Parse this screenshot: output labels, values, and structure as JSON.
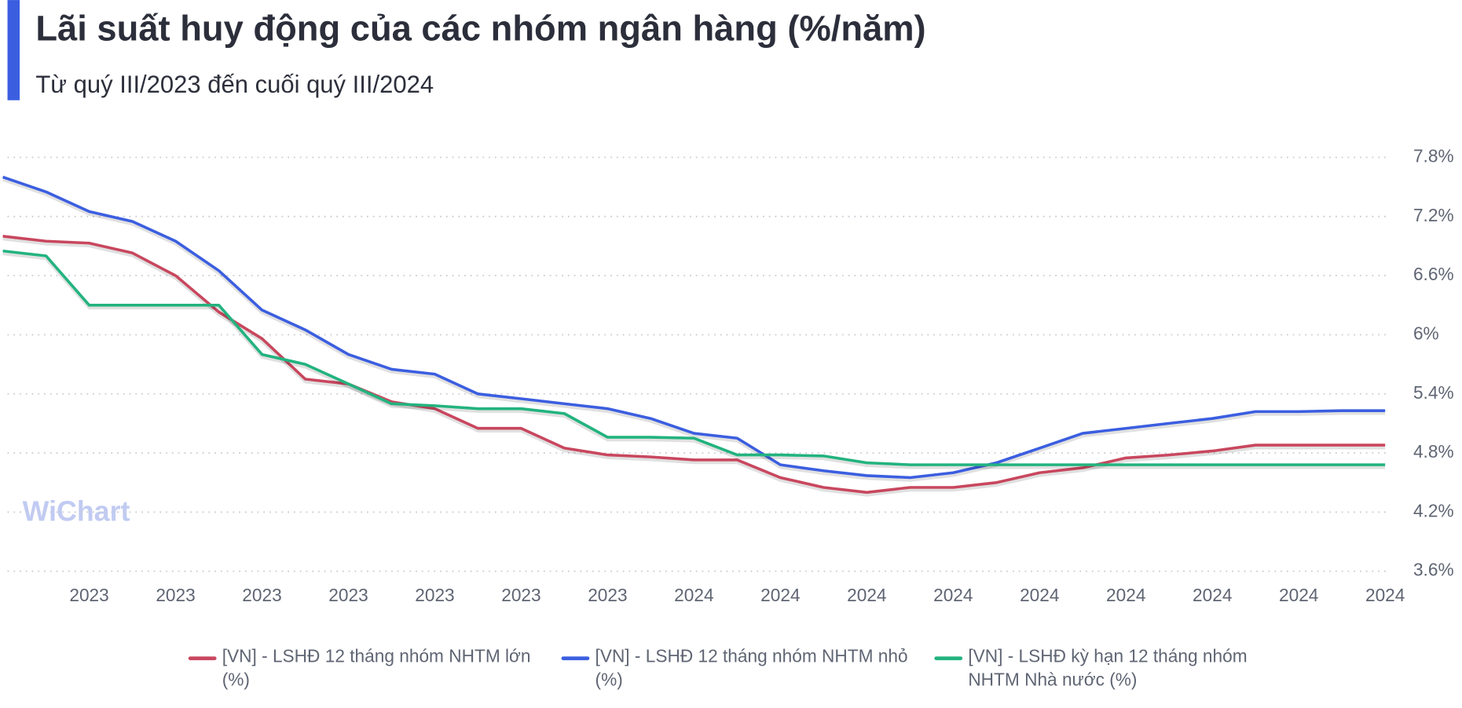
{
  "chart_data": {
    "type": "line",
    "title": "Lãi suất huy động của các nhóm ngân hàng (%/năm)",
    "subtitle": "Từ quý III/2023 đến cuối quý III/2024",
    "watermark": "WiChart",
    "categories": [
      null,
      null,
      "2023",
      null,
      "2023",
      null,
      "2023",
      null,
      "2023",
      null,
      "2023",
      null,
      "2023",
      null,
      "2023",
      null,
      "2024",
      null,
      "2024",
      null,
      "2024",
      null,
      "2024",
      null,
      "2024",
      null,
      "2024",
      null,
      "2024",
      null,
      "2024",
      null,
      "2024"
    ],
    "ylim": [
      3.6,
      7.8
    ],
    "yticks": [
      {
        "value": 3.6,
        "label": "3.6%"
      },
      {
        "value": 4.2,
        "label": "4.2%"
      },
      {
        "value": 4.8,
        "label": "4.8%"
      },
      {
        "value": 5.4,
        "label": "5.4%"
      },
      {
        "value": 6,
        "label": "6%"
      },
      {
        "value": 6.6,
        "label": "6.6%"
      },
      {
        "value": 7.2,
        "label": "7.2%"
      },
      {
        "value": 7.8,
        "label": "7.8%"
      }
    ],
    "grid": true,
    "legend": "bottom",
    "series": [
      {
        "name": "[VN] - LSHĐ 12 tháng nhóm NHTM lớn (%)",
        "color": "#c8475e",
        "values": [
          7.0,
          6.95,
          6.93,
          6.83,
          6.6,
          6.23,
          5.96,
          5.55,
          5.5,
          5.32,
          5.25,
          5.05,
          5.05,
          4.85,
          4.78,
          4.76,
          4.73,
          4.73,
          4.55,
          4.45,
          4.4,
          4.45,
          4.45,
          4.5,
          4.6,
          4.65,
          4.75,
          4.78,
          4.82,
          4.88,
          4.88,
          4.88,
          4.88
        ]
      },
      {
        "name": "[VN] - LSHĐ 12 tháng nhóm NHTM nhỏ (%)",
        "color": "#3b5ee0",
        "values": [
          7.6,
          7.45,
          7.25,
          7.15,
          6.95,
          6.65,
          6.25,
          6.05,
          5.8,
          5.65,
          5.6,
          5.4,
          5.35,
          5.3,
          5.25,
          5.15,
          5.0,
          4.95,
          4.68,
          4.62,
          4.57,
          4.55,
          4.6,
          4.7,
          4.85,
          5.0,
          5.05,
          5.1,
          5.15,
          5.22,
          5.22,
          5.23,
          5.23
        ]
      },
      {
        "name": "[VN] - LSHĐ kỳ hạn 12 tháng nhóm NHTM Nhà nước (%)",
        "color": "#22b37f",
        "values": [
          6.85,
          6.8,
          6.3,
          6.3,
          6.3,
          6.3,
          5.8,
          5.7,
          5.5,
          5.3,
          5.28,
          5.25,
          5.25,
          5.2,
          4.96,
          4.96,
          4.95,
          4.78,
          4.78,
          4.77,
          4.7,
          4.68,
          4.68,
          4.68,
          4.68,
          4.68,
          4.68,
          4.68,
          4.68,
          4.68,
          4.68,
          4.68,
          4.68
        ]
      }
    ]
  }
}
